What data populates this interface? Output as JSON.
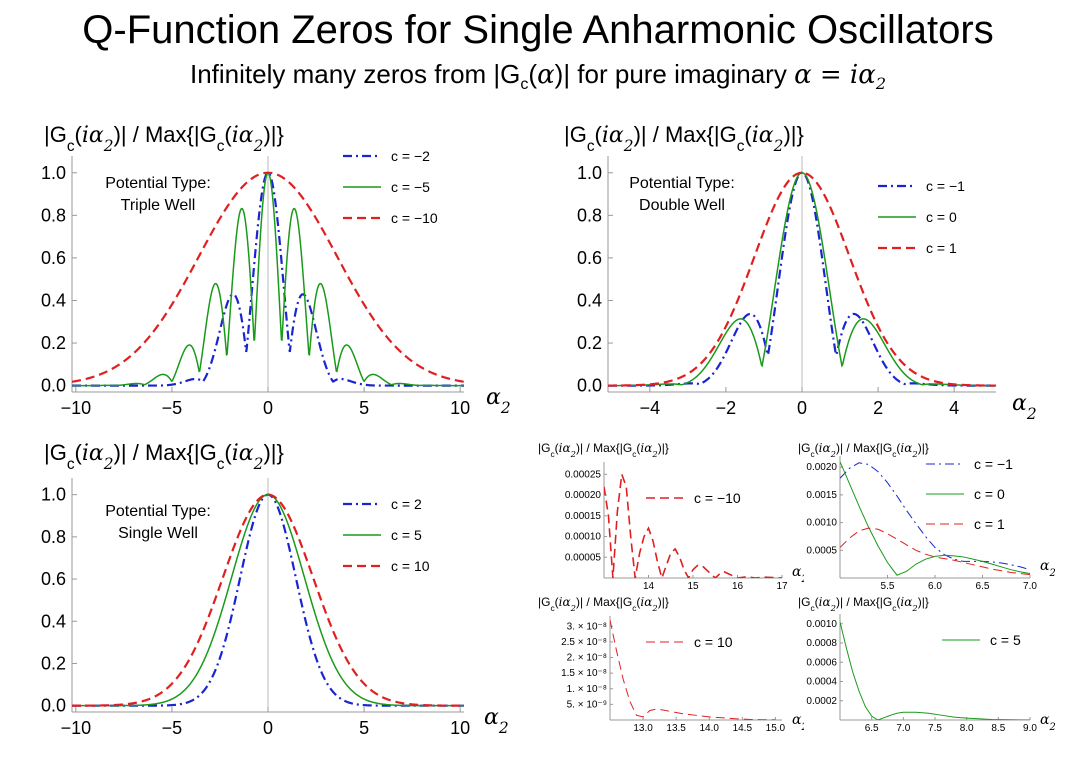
{
  "title": "Q-Function Zeros for Single Anharmonic Oscillators",
  "subtitle": {
    "prefix": "Infinitely many zeros from |G",
    "sub": "c",
    "open": "(",
    "alpha": "α",
    "mid": ")| for pure imaginary ",
    "eq": "α = iα",
    "eqsub": "2"
  },
  "colors": {
    "blue": "#1a24d0",
    "green": "#1a9a1a",
    "red": "#e02020"
  },
  "chart_data": [
    {
      "id": "triple",
      "type": "line",
      "ylabel": "|Gc(iα2)| / Max{|Gc(iα2)|}",
      "xlabel": "α2",
      "annotation": [
        "Potential Type:",
        "Triple Well"
      ],
      "xlim": [
        -10.2,
        10.2
      ],
      "ylim": [
        -0.03,
        1.06
      ],
      "xticks": [
        -10,
        -5,
        0,
        5,
        10
      ],
      "xticklabels": [
        "−10",
        "−5",
        "0",
        "5",
        "10"
      ],
      "yticks": [
        0,
        0.2,
        0.4,
        0.6,
        0.8,
        1.0
      ],
      "yticklabels": [
        "0.0",
        "0.2",
        "0.4",
        "0.6",
        "0.8",
        "1.0"
      ],
      "series": [
        {
          "name": "c = −2",
          "color": "blue",
          "dash": "dashdot",
          "model": "osc",
          "sigma": 1.55,
          "omega": 1.39,
          "rho": 0.2,
          "width": 2.2
        },
        {
          "name": "c = −5",
          "color": "green",
          "dash": "solid",
          "model": "osc",
          "sigma": 2.3,
          "omega": 2.2,
          "rho": 0.2,
          "width": 1.5
        },
        {
          "name": "c = −10",
          "color": "red",
          "dash": "dashed",
          "model": "gauss",
          "sigma": 3.6,
          "width": 2.2
        }
      ]
    },
    {
      "id": "double",
      "type": "line",
      "ylabel": "|Gc(iα2)| / Max{|Gc(iα2)|}",
      "xlabel": "α2",
      "annotation": [
        "Potential Type:",
        "Double Well"
      ],
      "xlim": [
        -5.1,
        5.1
      ],
      "ylim": [
        -0.03,
        1.06
      ],
      "xticks": [
        -4,
        -2,
        0,
        2,
        4
      ],
      "xticklabels": [
        "−4",
        "−2",
        "0",
        "2",
        "4"
      ],
      "yticks": [
        0,
        0.2,
        0.4,
        0.6,
        0.8,
        1.0
      ],
      "yticklabels": [
        "0.0",
        "0.2",
        "0.4",
        "0.6",
        "0.8",
        "1.0"
      ],
      "series": [
        {
          "name": "c = −1",
          "color": "blue",
          "dash": "dashdot",
          "model": "osc",
          "sigma": 1.05,
          "omega": 1.75,
          "rho": 0.2,
          "width": 2.2
        },
        {
          "name": "c = 0",
          "color": "green",
          "dash": "solid",
          "model": "osc",
          "sigma": 1.2,
          "omega": 1.49,
          "rho": 0.13,
          "width": 1.5
        },
        {
          "name": "c = 1",
          "color": "red",
          "dash": "dashed",
          "model": "gauss",
          "sigma": 1.25,
          "width": 2.2
        }
      ]
    },
    {
      "id": "single",
      "type": "line",
      "ylabel": "|Gc(iα2)| / Max{|Gc(iα2)|}",
      "xlabel": "α2",
      "annotation": [
        "Potential Type:",
        "Single Well"
      ],
      "xlim": [
        -10.2,
        10.2
      ],
      "ylim": [
        -0.03,
        1.06
      ],
      "xticks": [
        -10,
        -5,
        0,
        5,
        10
      ],
      "xticklabels": [
        "−10",
        "−5",
        "0",
        "5",
        "10"
      ],
      "yticks": [
        0,
        0.2,
        0.4,
        0.6,
        0.8,
        1.0
      ],
      "yticklabels": [
        "0.0",
        "0.2",
        "0.4",
        "0.6",
        "0.8",
        "1.0"
      ],
      "series": [
        {
          "name": "c = 2",
          "color": "blue",
          "dash": "dashdot",
          "model": "gauss",
          "sigma": 1.45,
          "width": 2.2
        },
        {
          "name": "c = 5",
          "color": "green",
          "dash": "solid",
          "model": "gauss",
          "sigma": 1.9,
          "width": 1.5
        },
        {
          "name": "c = 10",
          "color": "red",
          "dash": "dashed",
          "model": "gauss",
          "sigma": 2.35,
          "width": 2.2
        }
      ]
    },
    {
      "id": "inset1",
      "type": "line",
      "small": true,
      "ylabel": "|Gc(iα2)| / Max{|Gc(iα2)|}",
      "xlabel": "α2",
      "xlim": [
        13.0,
        17.0
      ],
      "ylim": [
        0,
        0.00027
      ],
      "xticks": [
        14,
        15,
        16,
        17
      ],
      "xticklabels": [
        "14",
        "15",
        "16",
        "17"
      ],
      "yticks": [
        5e-05,
        0.0001,
        0.00015,
        0.0002,
        0.00025
      ],
      "yticklabels": [
        "0.00005",
        "0.00010",
        "0.00015",
        "0.00020",
        "0.00025"
      ],
      "series": [
        {
          "name": "c = −10",
          "color": "red",
          "dash": "dashed",
          "model": "pts",
          "x": [
            13.0,
            13.1,
            13.2,
            13.3,
            13.4,
            13.5,
            13.6,
            13.7,
            13.8,
            13.9,
            14.0,
            14.1,
            14.2,
            14.3,
            14.4,
            14.5,
            14.6,
            14.7,
            14.8,
            14.9,
            15.0,
            15.1,
            15.2,
            15.3,
            15.4,
            15.5,
            15.6,
            15.7,
            15.8,
            15.9,
            16.0,
            16.2,
            16.4,
            16.6,
            16.8,
            17.0
          ],
          "y": [
            0.00022,
            0.00015,
            0.0,
            0.00016,
            0.00025,
            0.00022,
            0.0001,
            0.0,
            6e-05,
            0.0001,
            0.00012,
            9e-05,
            4e-05,
            0.0,
            3e-05,
            6e-05,
            7e-05,
            5e-05,
            2e-05,
            0.0,
            2e-05,
            3e-05,
            3e-05,
            2e-05,
            1e-05,
            0.0,
            1e-05,
            1.5e-05,
            1e-05,
            5e-06,
            0.0,
            3e-06,
            0.0,
            2e-06,
            1e-06,
            0.0
          ],
          "width": 1.6
        }
      ]
    },
    {
      "id": "inset2",
      "type": "line",
      "small": true,
      "ylabel": "|Gc(iα2)| / Max{|Gc(iα2)|}",
      "xlabel": "α2",
      "xlim": [
        5.0,
        7.0
      ],
      "ylim": [
        0,
        0.00213
      ],
      "xticks": [
        5.5,
        6.0,
        6.5,
        7.0
      ],
      "xticklabels": [
        "5.5",
        "6.0",
        "6.5",
        "7.0"
      ],
      "yticks": [
        0.0005,
        0.001,
        0.0015,
        0.002
      ],
      "yticklabels": [
        "0.0005",
        "0.0010",
        "0.0015",
        "0.0020"
      ],
      "series": [
        {
          "name": "c = −1",
          "color": "blue",
          "dash": "dashdot",
          "model": "pts",
          "x": [
            5.0,
            5.1,
            5.2,
            5.3,
            5.4,
            5.5,
            5.6,
            5.7,
            5.8,
            5.9,
            6.0,
            6.1,
            6.2,
            6.3,
            6.4,
            6.5,
            6.6,
            6.7,
            6.8,
            6.9,
            7.0
          ],
          "y": [
            0.0018,
            0.00198,
            0.00208,
            0.00205,
            0.00192,
            0.00172,
            0.00148,
            0.00122,
            0.00098,
            0.00075,
            0.00055,
            0.00042,
            0.00034,
            0.0003,
            0.0003,
            0.0003,
            0.00029,
            0.00027,
            0.00024,
            0.0002,
            0.00015
          ],
          "width": 1.0
        },
        {
          "name": "c = 0",
          "color": "green",
          "dash": "solid",
          "model": "pts",
          "x": [
            5.0,
            5.1,
            5.2,
            5.3,
            5.4,
            5.5,
            5.6,
            5.7,
            5.8,
            5.9,
            6.0,
            6.1,
            6.2,
            6.3,
            6.4,
            6.5,
            6.6,
            6.7,
            6.8,
            6.9,
            7.0
          ],
          "y": [
            0.0021,
            0.0017,
            0.0013,
            0.00092,
            0.00058,
            0.00028,
            5e-05,
            0.00012,
            0.00025,
            0.00034,
            0.00039,
            0.00041,
            0.0004,
            0.00038,
            0.00034,
            0.0003,
            0.00025,
            0.0002,
            0.00015,
            0.00011,
            8e-05
          ],
          "width": 1.0
        },
        {
          "name": "c = 1",
          "color": "red",
          "dash": "dashed",
          "model": "pts",
          "x": [
            5.0,
            5.1,
            5.2,
            5.3,
            5.4,
            5.5,
            5.6,
            5.7,
            5.8,
            5.9,
            6.0,
            6.1,
            6.2,
            6.3,
            6.4,
            6.5,
            6.6,
            6.7,
            6.8,
            6.9,
            7.0
          ],
          "y": [
            0.00055,
            0.00072,
            0.00085,
            0.0009,
            0.00088,
            0.0008,
            0.0007,
            0.0006,
            0.0005,
            0.00043,
            0.00038,
            0.00035,
            0.00032,
            0.00028,
            0.00024,
            0.0002,
            0.00016,
            0.00013,
            0.0001,
            8e-05,
            6e-05
          ],
          "width": 1.0
        }
      ]
    },
    {
      "id": "inset3",
      "type": "line",
      "small": true,
      "ylabel": "|Gc(iα2)| / Max{|Gc(iα2)|}",
      "xlabel": "α2",
      "xlim": [
        12.5,
        15.1
      ],
      "ylim": [
        0,
        3.2e-08
      ],
      "xticks": [
        13.0,
        13.5,
        14.0,
        14.5,
        15.0
      ],
      "xticklabels": [
        "13.0",
        "13.5",
        "14.0",
        "14.5",
        "15.0"
      ],
      "yticks": [
        5e-09,
        1e-08,
        1.5e-08,
        2e-08,
        2.5e-08,
        3e-08
      ],
      "yticklabels": [
        "5. × 10⁻⁹",
        "1. × 10⁻⁸",
        "1.5 × 10⁻⁸",
        "2. × 10⁻⁸",
        "2.5 × 10⁻⁸",
        "3. × 10⁻⁸"
      ],
      "series": [
        {
          "name": "c = 10",
          "color": "red",
          "dash": "dashed",
          "model": "pts",
          "x": [
            12.5,
            12.6,
            12.7,
            12.8,
            12.9,
            13.0,
            13.1,
            13.2,
            13.3,
            13.4,
            13.6,
            13.8,
            14.0,
            14.2,
            14.4,
            14.6,
            14.8,
            15.0
          ],
          "y": [
            3.2e-08,
            2.2e-08,
            1.3e-08,
            6e-09,
            1.5e-09,
            1e-09,
            3e-09,
            3.5e-09,
            3.2e-09,
            2.8e-09,
            2e-09,
            1.5e-09,
            1e-09,
            7e-10,
            4e-10,
            2e-10,
            1e-10,
            5e-11
          ],
          "width": 1.0
        }
      ]
    },
    {
      "id": "inset4",
      "type": "line",
      "small": true,
      "ylabel": "|Gc(iα2)| / Max{|Gc(iα2)|}",
      "xlabel": "α2",
      "xlim": [
        6.0,
        9.0
      ],
      "ylim": [
        0,
        0.00106
      ],
      "xticks": [
        6.5,
        7.0,
        7.5,
        8.0,
        8.5,
        9.0
      ],
      "xticklabels": [
        "6.5",
        "7.0",
        "7.5",
        "8.0",
        "8.5",
        "9.0"
      ],
      "yticks": [
        0.0002,
        0.0004,
        0.0006,
        0.0008,
        0.001
      ],
      "yticklabels": [
        "0.0002",
        "0.0004",
        "0.0006",
        "0.0008",
        "0.0010"
      ],
      "series": [
        {
          "name": "c = 5",
          "color": "green",
          "dash": "solid",
          "model": "pts",
          "x": [
            6.0,
            6.1,
            6.2,
            6.3,
            6.4,
            6.5,
            6.6,
            6.7,
            6.8,
            6.9,
            7.0,
            7.2,
            7.4,
            7.6,
            7.8,
            8.0,
            8.4,
            9.0
          ],
          "y": [
            0.00102,
            0.00075,
            0.0005,
            0.0003,
            0.00014,
            4e-05,
            0.0,
            2.5e-05,
            5e-05,
            7e-05,
            8e-05,
            8e-05,
            7e-05,
            5e-05,
            3e-05,
            2e-05,
            5e-06,
            0.0
          ],
          "width": 1.0
        }
      ]
    }
  ]
}
